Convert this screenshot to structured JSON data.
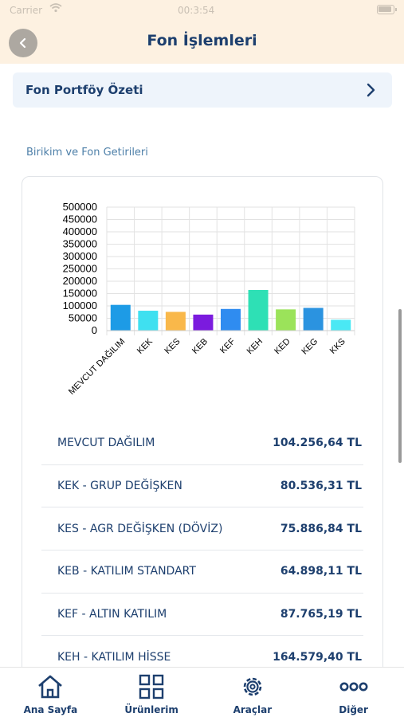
{
  "status": {
    "carrier": "Carrier",
    "time": "00:3:54",
    "wifi_icon": "wifi-icon",
    "battery_icon": "battery-icon"
  },
  "header": {
    "title": "Fon İşlemleri",
    "back_icon": "chevron-left-icon"
  },
  "summary": {
    "label": "Fon Portföy Özeti",
    "chevron_icon": "chevron-right-icon"
  },
  "section_title": "Birikim ve Fon Getirileri",
  "chart_data": {
    "type": "bar",
    "categories": [
      "MEVCUT DAĞILIM",
      "KEK",
      "KES",
      "KEB",
      "KEF",
      "KEH",
      "KED",
      "KEG",
      "KKS"
    ],
    "values": [
      104256.64,
      80536.31,
      75886.84,
      64898.11,
      87765.19,
      164579.4,
      86000,
      92000,
      44000
    ],
    "colors": [
      "#1d9be6",
      "#3fe0f0",
      "#f9b84a",
      "#7b1bde",
      "#2f8cf0",
      "#2ee0b5",
      "#9be35a",
      "#2b93e0",
      "#4ae8f4"
    ],
    "yticks": [
      "500000",
      "450000",
      "400000",
      "350000",
      "300000",
      "250000",
      "200000",
      "150000",
      "100000",
      "50000",
      "0"
    ],
    "ylim": [
      0,
      500000
    ],
    "grid": true,
    "title": "",
    "xlabel": "",
    "ylabel": ""
  },
  "funds": [
    {
      "name": "MEVCUT DAĞILIM",
      "value": "104.256,64 TL"
    },
    {
      "name": "KEK - GRUP DEĞİŞKEN",
      "value": "80.536,31 TL"
    },
    {
      "name": "KES - AGR DEĞİŞKEN (DÖVİZ)",
      "value": "75.886,84 TL"
    },
    {
      "name": "KEB - KATILIM STANDART",
      "value": "64.898,11 TL"
    },
    {
      "name": "KEF - ALTIN KATILIM",
      "value": "87.765,19 TL"
    },
    {
      "name": "KEH - KATILIM HİSSE",
      "value": "164.579,40 TL"
    }
  ],
  "tabs": [
    {
      "label": "Ana Sayfa",
      "icon": "home-icon"
    },
    {
      "label": "Ürünlerim",
      "icon": "grid-icon"
    },
    {
      "label": "Araçlar",
      "icon": "gear-icon"
    },
    {
      "label": "Diğer",
      "icon": "more-icon"
    }
  ],
  "colors": {
    "header_bg": "#fdf1e1",
    "primary_text": "#1d3f6e",
    "summary_bg": "#eef4fb"
  }
}
